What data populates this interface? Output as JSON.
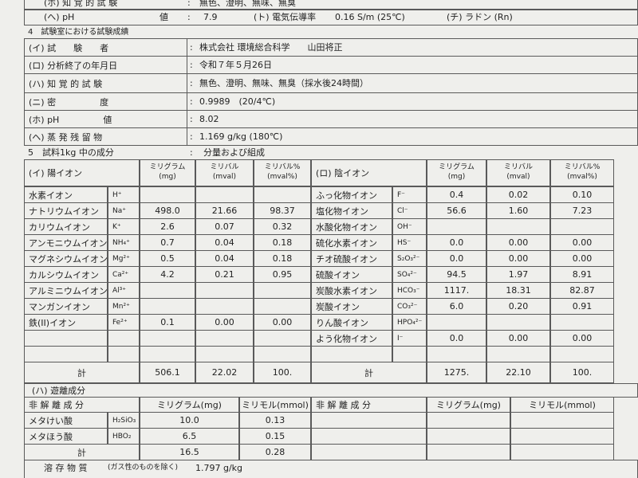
{
  "partial_row": {
    "label": "(ホ) 知 覚 的 試 験",
    "value": "無色、澄明、無味、無臭"
  },
  "field_row": [
    {
      "label": "(へ) pH",
      "unit": "値",
      "value": "7.9"
    },
    {
      "label": "(ト) 電気伝導率",
      "value": "0.16 S/m (25℃)"
    },
    {
      "label": "(チ) ラドン (Rn)"
    }
  ],
  "section4": {
    "title": "4　試験室における試験成績",
    "rows": [
      {
        "label": "(イ) 試　　験　　者",
        "value": "株式会社 環境総合科学　　山田将正"
      },
      {
        "label": "(ロ) 分析終了の年月日",
        "value": "令和７年５月26日"
      },
      {
        "label": "(ハ) 知 覚 的 試 験",
        "value": "無色、澄明、無味、無臭（採水後24時間）"
      },
      {
        "label": "(ニ) 密　　　　　度",
        "value": "0.9989　(20/4℃)"
      },
      {
        "label": "(ホ) pH　　　　　値",
        "value": "8.02"
      },
      {
        "label": "(ヘ) 蒸 発 残 留 物",
        "value": "1.169 g/kg (180℃)"
      }
    ]
  },
  "section5": {
    "title": "5　試料1kg 中の成分",
    "value": "分量および組成"
  },
  "colon": ":",
  "ions": {
    "cation_title": "(イ) 陽イオン",
    "anion_title": "(ロ) 陰イオン",
    "columns": [
      {
        "name": "ミリグラム",
        "unit": "(mg)"
      },
      {
        "name": "ミリバル",
        "unit": "(mval)"
      },
      {
        "name": "ミリバル%",
        "unit": "(mval%)"
      }
    ],
    "cations": [
      {
        "name": "水素イオン",
        "formula": "H⁺"
      },
      {
        "name": "ナトリウムイオン",
        "formula": "Na⁺",
        "mg": "498.0",
        "mval": "21.66",
        "pct": "98.37"
      },
      {
        "name": "カリウムイオン",
        "formula": "K⁺",
        "mg": "2.6",
        "mval": "0.07",
        "pct": "0.32"
      },
      {
        "name": "アンモニウムイオン",
        "formula": "NH₄⁺",
        "mg": "0.7",
        "mval": "0.04",
        "pct": "0.18"
      },
      {
        "name": "マグネシウムイオン",
        "formula": "Mg²⁺",
        "mg": "0.5",
        "mval": "0.04",
        "pct": "0.18"
      },
      {
        "name": "カルシウムイオン",
        "formula": "Ca²⁺",
        "mg": "4.2",
        "mval": "0.21",
        "pct": "0.95"
      },
      {
        "name": "アルミニウムイオン",
        "formula": "Al³⁺"
      },
      {
        "name": "マンガンイオン",
        "formula": "Mn²⁺"
      },
      {
        "name": "鉄(II)イオン",
        "formula": "Fe²⁺",
        "mg": "0.1",
        "mval": "0.00",
        "pct": "0.00"
      }
    ],
    "anions": [
      {
        "name": "ふっ化物イオン",
        "formula": "F⁻",
        "mg": "0.4",
        "mval": "0.02",
        "pct": "0.10"
      },
      {
        "name": "塩化物イオン",
        "formula": "Cl⁻",
        "mg": "56.6",
        "mval": "1.60",
        "pct": "7.23"
      },
      {
        "name": "水酸化物イオン",
        "formula": "OH⁻"
      },
      {
        "name": "硫化水素イオン",
        "formula": "HS⁻",
        "mg": "0.0",
        "mval": "0.00",
        "pct": "0.00"
      },
      {
        "name": "チオ硫酸イオン",
        "formula": "S₂O₃²⁻",
        "mg": "0.0",
        "mval": "0.00",
        "pct": "0.00"
      },
      {
        "name": "硫酸イオン",
        "formula": "SO₄²⁻",
        "mg": "94.5",
        "mval": "1.97",
        "pct": "8.91"
      },
      {
        "name": "炭酸水素イオン",
        "formula": "HCO₃⁻",
        "mg": "1117.",
        "mval": "18.31",
        "pct": "82.87"
      },
      {
        "name": "炭酸イオン",
        "formula": "CO₃²⁻",
        "mg": "6.0",
        "mval": "0.20",
        "pct": "0.91"
      },
      {
        "name": "りん酸イオン",
        "formula": "HPO₄²⁻"
      },
      {
        "name": "よう化物イオン",
        "formula": "I⁻",
        "mg": "0.0",
        "mval": "0.00",
        "pct": "0.00"
      }
    ],
    "total_label": "計",
    "cation_total": {
      "mg": "506.1",
      "mval": "22.02",
      "pct": "100."
    },
    "anion_total": {
      "mg": "1275.",
      "mval": "22.10",
      "pct": "100."
    }
  },
  "free": {
    "title": "(ハ) 遊離成分",
    "header": {
      "name": "非 解 離 成 分",
      "mg": "ミリグラム(mg)",
      "mmol": "ミリモル(mmol)"
    },
    "rows": [
      {
        "name": "メタけい酸",
        "formula": "H₂SiO₃",
        "mg": "10.0",
        "mmol": "0.13"
      },
      {
        "name": "メタほう酸",
        "formula": "HBO₂",
        "mg": "6.5",
        "mmol": "0.15"
      }
    ],
    "total_label": "計",
    "total": {
      "mg": "16.5",
      "mmol": "0.28"
    }
  },
  "dissolved": {
    "label": "溶 存 物 質",
    "note": "(ガス性のものを除く)",
    "value": "1.797 g/kg"
  }
}
